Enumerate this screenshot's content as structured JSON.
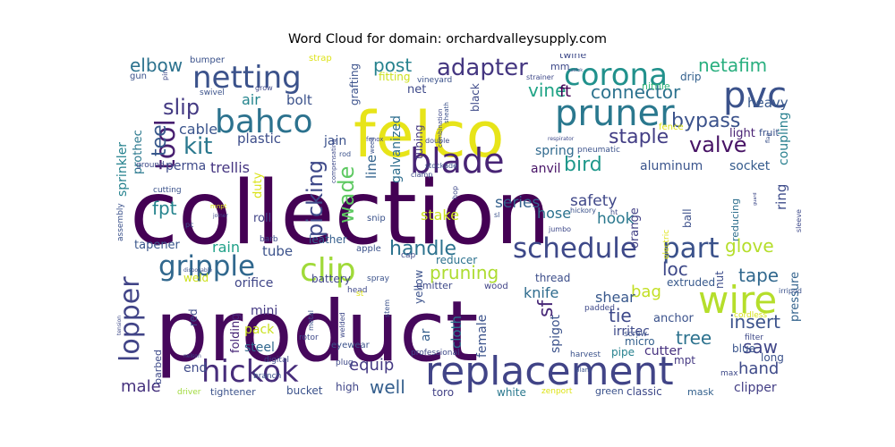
{
  "chart_data": {
    "type": "wordcloud",
    "title": "Word Cloud for domain: orchardvalleysupply.com",
    "background": "#ffffff",
    "colormap": "viridis",
    "words": [
      {
        "text": "collection",
        "weight": 1.0,
        "color": "#440154"
      },
      {
        "text": "product",
        "weight": 0.95,
        "color": "#46085c"
      },
      {
        "text": "felco",
        "weight": 0.62,
        "color": "#e7e419"
      },
      {
        "text": "replacement",
        "weight": 0.45,
        "color": "#414487"
      },
      {
        "text": "pruner",
        "weight": 0.4,
        "color": "#2a788e"
      },
      {
        "text": "wire",
        "weight": 0.38,
        "color": "#b5de2b"
      },
      {
        "text": "blade",
        "weight": 0.34,
        "color": "#482475"
      },
      {
        "text": "pvc",
        "weight": 0.33,
        "color": "#3b528b"
      },
      {
        "text": "corona",
        "weight": 0.31,
        "color": "#21918c"
      },
      {
        "text": "bahco",
        "weight": 0.3,
        "color": "#2c728e"
      },
      {
        "text": "netting",
        "weight": 0.3,
        "color": "#3b528b"
      },
      {
        "text": "schedule",
        "weight": 0.28,
        "color": "#3e4989"
      },
      {
        "text": "hickok",
        "weight": 0.28,
        "color": "#472d7b"
      },
      {
        "text": "clip",
        "weight": 0.28,
        "color": "#a0da39"
      },
      {
        "text": "part",
        "weight": 0.27,
        "color": "#3b528b"
      },
      {
        "text": "gripple",
        "weight": 0.26,
        "color": "#31688e"
      },
      {
        "text": "lopper",
        "weight": 0.26,
        "color": "#414487"
      },
      {
        "text": "tool",
        "weight": 0.26,
        "color": "#481f70"
      },
      {
        "text": "adapter",
        "weight": 0.22,
        "color": "#453781"
      },
      {
        "text": "kit",
        "weight": 0.22,
        "color": "#2a788e"
      },
      {
        "text": "slip",
        "weight": 0.21,
        "color": "#443a83"
      },
      {
        "text": "tee",
        "weight": 0.21,
        "color": "#38588c"
      },
      {
        "text": "picking",
        "weight": 0.2,
        "color": "#3e4989"
      },
      {
        "text": "handle",
        "weight": 0.2,
        "color": "#2c728e"
      },
      {
        "text": "valve",
        "weight": 0.2,
        "color": "#471365"
      },
      {
        "text": "bird",
        "weight": 0.2,
        "color": "#1f988b"
      },
      {
        "text": "staple",
        "weight": 0.2,
        "color": "#433e85"
      },
      {
        "text": "bypass",
        "weight": 0.18,
        "color": "#3b528b"
      },
      {
        "text": "connector",
        "weight": 0.18,
        "color": "#2c728e"
      },
      {
        "text": "netafim",
        "weight": 0.17,
        "color": "#29af7f"
      },
      {
        "text": "elbow",
        "weight": 0.17,
        "color": "#2c728e"
      },
      {
        "text": "post",
        "weight": 0.17,
        "color": "#26828e"
      },
      {
        "text": "vine",
        "weight": 0.17,
        "color": "#20a486"
      },
      {
        "text": "ft",
        "weight": 0.17,
        "color": "#440154"
      },
      {
        "text": "wade",
        "weight": 0.2,
        "color": "#5ec962"
      },
      {
        "text": "pruning",
        "weight": 0.17,
        "color": "#addc30"
      },
      {
        "text": "sf",
        "weight": 0.2,
        "color": "#482878"
      },
      {
        "text": "loc",
        "weight": 0.17,
        "color": "#3e4989"
      },
      {
        "text": "tape",
        "weight": 0.17,
        "color": "#31688e"
      },
      {
        "text": "glove",
        "weight": 0.17,
        "color": "#b5de2b"
      },
      {
        "text": "tree",
        "weight": 0.17,
        "color": "#2c728e"
      },
      {
        "text": "insert",
        "weight": 0.17,
        "color": "#3b528b"
      },
      {
        "text": "tie",
        "weight": 0.17,
        "color": "#3e4989"
      },
      {
        "text": "bag",
        "weight": 0.15,
        "color": "#c2df23"
      },
      {
        "text": "saw",
        "weight": 0.15,
        "color": "#404688"
      },
      {
        "text": "equip",
        "weight": 0.15,
        "color": "#443983"
      },
      {
        "text": "well",
        "weight": 0.15,
        "color": "#355f8d"
      },
      {
        "text": "hand",
        "weight": 0.15,
        "color": "#3e4a89"
      },
      {
        "text": "male",
        "weight": 0.14,
        "color": "#46327e"
      },
      {
        "text": "safety",
        "weight": 0.14,
        "color": "#3f4788"
      },
      {
        "text": "series",
        "weight": 0.14,
        "color": "#34618d"
      },
      {
        "text": "stake",
        "weight": 0.14,
        "color": "#cae11f"
      },
      {
        "text": "hook",
        "weight": 0.14,
        "color": "#2a788e"
      },
      {
        "text": "hose",
        "weight": 0.14,
        "color": "#2c728e"
      },
      {
        "text": "knife",
        "weight": 0.14,
        "color": "#2f6c8e"
      },
      {
        "text": "shear",
        "weight": 0.13,
        "color": "#38588c"
      },
      {
        "text": "fpt",
        "weight": 0.15,
        "color": "#25848e"
      },
      {
        "text": "trellis",
        "weight": 0.13,
        "color": "#453581"
      },
      {
        "text": "plastic",
        "weight": 0.12,
        "color": "#3d4d8a"
      },
      {
        "text": "cable",
        "weight": 0.12,
        "color": "#3a548c"
      },
      {
        "text": "bolt",
        "weight": 0.12,
        "color": "#3b528b"
      },
      {
        "text": "air",
        "weight": 0.12,
        "color": "#25858e"
      },
      {
        "text": "heavy",
        "weight": 0.12,
        "color": "#38588c"
      },
      {
        "text": "light",
        "weight": 0.1,
        "color": "#482173"
      },
      {
        "text": "spring",
        "weight": 0.12,
        "color": "#306a8e"
      },
      {
        "text": "anvil",
        "weight": 0.12,
        "color": "#481467"
      },
      {
        "text": "aluminum",
        "weight": 0.12,
        "color": "#3a548c"
      },
      {
        "text": "socket",
        "weight": 0.11,
        "color": "#365c8d"
      },
      {
        "text": "ring",
        "weight": 0.12,
        "color": "#3e4c8a"
      },
      {
        "text": "coupling",
        "weight": 0.12,
        "color": "#277f8e"
      },
      {
        "text": "perma",
        "weight": 0.11,
        "color": "#3e4989"
      },
      {
        "text": "jain",
        "weight": 0.11,
        "color": "#3b518b"
      },
      {
        "text": "duty",
        "weight": 0.11,
        "color": "#dae319"
      },
      {
        "text": "line",
        "weight": 0.12,
        "color": "#33638d"
      },
      {
        "text": "galvanized",
        "weight": 0.11,
        "color": "#2e6e8e"
      },
      {
        "text": "tubing",
        "weight": 0.09,
        "color": "#453882"
      },
      {
        "text": "sprinkler",
        "weight": 0.1,
        "color": "#26828e"
      },
      {
        "text": "prothec",
        "weight": 0.09,
        "color": "#2a788e"
      },
      {
        "text": "roll",
        "weight": 0.1,
        "color": "#414487"
      },
      {
        "text": "rain",
        "weight": 0.12,
        "color": "#1fa188"
      },
      {
        "text": "tube",
        "weight": 0.11,
        "color": "#3b528b"
      },
      {
        "text": "tapener",
        "weight": 0.1,
        "color": "#39568c"
      },
      {
        "text": "orifice",
        "weight": 0.1,
        "color": "#404688"
      },
      {
        "text": "mini",
        "weight": 0.1,
        "color": "#443983"
      },
      {
        "text": "pack",
        "weight": 0.1,
        "color": "#cae11f"
      },
      {
        "text": "steel",
        "weight": 0.1,
        "color": "#31688e"
      },
      {
        "text": "end",
        "weight": 0.1,
        "color": "#3e4989"
      },
      {
        "text": "folding",
        "weight": 0.1,
        "color": "#482677"
      },
      {
        "text": "battery",
        "weight": 0.09,
        "color": "#404688"
      },
      {
        "text": "leather",
        "weight": 0.09,
        "color": "#355f8d"
      },
      {
        "text": "cloth",
        "weight": 0.1,
        "color": "#2c728e"
      },
      {
        "text": "female",
        "weight": 0.1,
        "color": "#3b528b"
      },
      {
        "text": "spigot",
        "weight": 0.1,
        "color": "#3b528b"
      },
      {
        "text": "irritec",
        "weight": 0.1,
        "color": "#3e4a89"
      },
      {
        "text": "anchor",
        "weight": 0.1,
        "color": "#3b528b"
      },
      {
        "text": "cutter",
        "weight": 0.1,
        "color": "#46307e"
      },
      {
        "text": "pressure",
        "weight": 0.1,
        "color": "#33638d"
      },
      {
        "text": "clipper",
        "weight": 0.1,
        "color": "#433e85"
      },
      {
        "text": "ar",
        "weight": 0.1,
        "color": "#355f8d"
      },
      {
        "text": "orange",
        "weight": 0.09,
        "color": "#424186"
      },
      {
        "text": "reducing",
        "weight": 0.08,
        "color": "#2e6f8e"
      },
      {
        "text": "micro",
        "weight": 0.09,
        "color": "#34608d"
      },
      {
        "text": "thread",
        "weight": 0.09,
        "color": "#3d4e8a"
      },
      {
        "text": "extruded",
        "weight": 0.08,
        "color": "#38598c"
      },
      {
        "text": "blue",
        "weight": 0.08,
        "color": "#3a548c"
      },
      {
        "text": "long",
        "weight": 0.08,
        "color": "#3b528b"
      },
      {
        "text": "mpt",
        "weight": 0.08,
        "color": "#453882"
      },
      {
        "text": "pipe",
        "weight": 0.08,
        "color": "#26818e"
      },
      {
        "text": "ball",
        "weight": 0.08,
        "color": "#3c4f8a"
      },
      {
        "text": "nut",
        "weight": 0.08,
        "color": "#3d4d8a"
      },
      {
        "text": "toro",
        "weight": 0.08,
        "color": "#424186"
      },
      {
        "text": "white",
        "weight": 0.08,
        "color": "#2a788e"
      },
      {
        "text": "green",
        "weight": 0.08,
        "color": "#3b528b"
      },
      {
        "text": "classic",
        "weight": 0.08,
        "color": "#3e4989"
      },
      {
        "text": "mask",
        "weight": 0.08,
        "color": "#34618d"
      },
      {
        "text": "bucket",
        "weight": 0.08,
        "color": "#3b528b"
      },
      {
        "text": "high",
        "weight": 0.08,
        "color": "#404688"
      },
      {
        "text": "tightener",
        "weight": 0.08,
        "color": "#3b528b"
      },
      {
        "text": "barbed",
        "weight": 0.08,
        "color": "#3e4a89"
      },
      {
        "text": "red",
        "weight": 0.08,
        "color": "#3e4c8a"
      },
      {
        "text": "reducer",
        "weight": 0.08,
        "color": "#2c728e"
      },
      {
        "text": "yellow",
        "weight": 0.08,
        "color": "#3b528b"
      },
      {
        "text": "emitter",
        "weight": 0.07,
        "color": "#3e4989"
      },
      {
        "text": "wood",
        "weight": 0.07,
        "color": "#414487"
      },
      {
        "text": "weld",
        "weight": 0.08,
        "color": "#cde11d"
      },
      {
        "text": "black",
        "weight": 0.08,
        "color": "#3e4a89"
      },
      {
        "text": "net",
        "weight": 0.08,
        "color": "#3e4989"
      },
      {
        "text": "fitting",
        "weight": 0.08,
        "color": "#cde11d"
      },
      {
        "text": "grafting",
        "weight": 0.08,
        "color": "#3b528b"
      },
      {
        "text": "nitrile",
        "weight": 0.07,
        "color": "#35b779"
      },
      {
        "text": "twine",
        "weight": 0.07,
        "color": "#3e4a89"
      },
      {
        "text": "drip",
        "weight": 0.08,
        "color": "#34618d"
      },
      {
        "text": "fruit",
        "weight": 0.07,
        "color": "#3b528b"
      },
      {
        "text": "fence",
        "weight": 0.07,
        "color": "#dde318"
      },
      {
        "text": "pneumatic",
        "weight": 0.06,
        "color": "#3b528b"
      },
      {
        "text": "cordless",
        "weight": 0.06,
        "color": "#d5e21a"
      },
      {
        "text": "filter",
        "weight": 0.06,
        "color": "#3e4989"
      },
      {
        "text": "sleeve",
        "weight": 0.05,
        "color": "#3e4989"
      },
      {
        "text": "max",
        "weight": 0.06,
        "color": "#3e4989"
      },
      {
        "text": "harvest",
        "weight": 0.06,
        "color": "#3b528b"
      },
      {
        "text": "zenport",
        "weight": 0.06,
        "color": "#dde318"
      },
      {
        "text": "screw",
        "weight": 0.06,
        "color": "#3b528b"
      },
      {
        "text": "padded",
        "weight": 0.06,
        "color": "#3e4989"
      },
      {
        "text": "plant",
        "weight": 0.05,
        "color": "#3b528b"
      },
      {
        "text": "professional",
        "weight": 0.06,
        "color": "#3e4989"
      },
      {
        "text": "driver",
        "weight": 0.06,
        "color": "#9fda3a"
      },
      {
        "text": "eyewear",
        "weight": 0.06,
        "color": "#3b528b"
      },
      {
        "text": "digital",
        "weight": 0.06,
        "color": "#3e4989"
      },
      {
        "text": "plug",
        "weight": 0.06,
        "color": "#3e4989"
      },
      {
        "text": "branch",
        "weight": 0.06,
        "color": "#3b528b"
      },
      {
        "text": "rotor",
        "weight": 0.06,
        "color": "#3e4989"
      },
      {
        "text": "metal",
        "weight": 0.05,
        "color": "#3b528b"
      },
      {
        "text": "welded",
        "weight": 0.05,
        "color": "#3e4989"
      },
      {
        "text": "stem",
        "weight": 0.05,
        "color": "#3b528b"
      },
      {
        "text": "head",
        "weight": 0.06,
        "color": "#3e4989"
      },
      {
        "text": "spray",
        "weight": 0.06,
        "color": "#3b528b"
      },
      {
        "text": "st",
        "weight": 0.06,
        "color": "#dde318"
      },
      {
        "text": "cap",
        "weight": 0.06,
        "color": "#3e4989"
      },
      {
        "text": "apple",
        "weight": 0.07,
        "color": "#3b528b"
      },
      {
        "text": "barb",
        "weight": 0.06,
        "color": "#3e4989"
      },
      {
        "text": "snip",
        "weight": 0.07,
        "color": "#3b528b"
      },
      {
        "text": "jumbo",
        "weight": 0.06,
        "color": "#3e4989"
      },
      {
        "text": "sl",
        "weight": 0.05,
        "color": "#3b528b"
      },
      {
        "text": "hop",
        "weight": 0.05,
        "color": "#3e4989"
      },
      {
        "text": "clamp",
        "weight": 0.05,
        "color": "#3e4989"
      },
      {
        "text": "stockade",
        "weight": 0.05,
        "color": "#3b528b"
      },
      {
        "text": "double",
        "weight": 0.05,
        "color": "#3e4989"
      },
      {
        "text": "cutting",
        "weight": 0.06,
        "color": "#3b528b"
      },
      {
        "text": "ground",
        "weight": 0.06,
        "color": "#3e4989"
      },
      {
        "text": "assembly",
        "weight": 0.07,
        "color": "#3b528b"
      },
      {
        "text": "compensating",
        "weight": 0.05,
        "color": "#3e4989"
      },
      {
        "text": "rod",
        "weight": 0.06,
        "color": "#3b528b"
      },
      {
        "text": "fenox",
        "weight": 0.05,
        "color": "#3e4989"
      },
      {
        "text": "weed",
        "weight": 0.05,
        "color": "#3b528b"
      },
      {
        "text": "combination",
        "weight": 0.05,
        "color": "#3e4989"
      },
      {
        "text": "sheath",
        "weight": 0.05,
        "color": "#3b528b"
      },
      {
        "text": "respirator",
        "weight": 0.04,
        "color": "#3e4989"
      },
      {
        "text": "vineyard",
        "weight": 0.06,
        "color": "#3b528b"
      },
      {
        "text": "strainer",
        "weight": 0.06,
        "color": "#3e4989"
      },
      {
        "text": "swivel",
        "weight": 0.06,
        "color": "#3b528b"
      },
      {
        "text": "grow",
        "weight": 0.05,
        "color": "#3e4989"
      },
      {
        "text": "gun",
        "weight": 0.06,
        "color": "#3b528b"
      },
      {
        "text": "pin",
        "weight": 0.05,
        "color": "#3e4989"
      },
      {
        "text": "bumper",
        "weight": 0.06,
        "color": "#3b528b"
      },
      {
        "text": "strap",
        "weight": 0.06,
        "color": "#dde318"
      },
      {
        "text": "mm",
        "weight": 0.06,
        "color": "#3e4989"
      },
      {
        "text": "flag",
        "weight": 0.04,
        "color": "#3b528b"
      },
      {
        "text": "mnpt",
        "weight": 0.05,
        "color": "#dde318"
      },
      {
        "text": "joiner",
        "weight": 0.04,
        "color": "#3e4989"
      },
      {
        "text": "pc",
        "weight": 0.05,
        "color": "#3b528b"
      },
      {
        "text": "tension",
        "weight": 0.04,
        "color": "#3e4989"
      },
      {
        "text": "disposable",
        "weight": 0.04,
        "color": "#3b528b"
      },
      {
        "text": "nelson",
        "weight": 0.04,
        "color": "#3e4989"
      },
      {
        "text": "hickory",
        "weight": 0.05,
        "color": "#3b528b"
      },
      {
        "text": "ht",
        "weight": 0.05,
        "color": "#3e4989"
      },
      {
        "text": "electric",
        "weight": 0.06,
        "color": "#dde318"
      },
      {
        "text": "irripod",
        "weight": 0.05,
        "color": "#3b528b"
      },
      {
        "text": "guard",
        "weight": 0.04,
        "color": "#3e4989"
      },
      {
        "text": "sadlok",
        "weight": 0.04,
        "color": "#3b528b"
      }
    ]
  }
}
